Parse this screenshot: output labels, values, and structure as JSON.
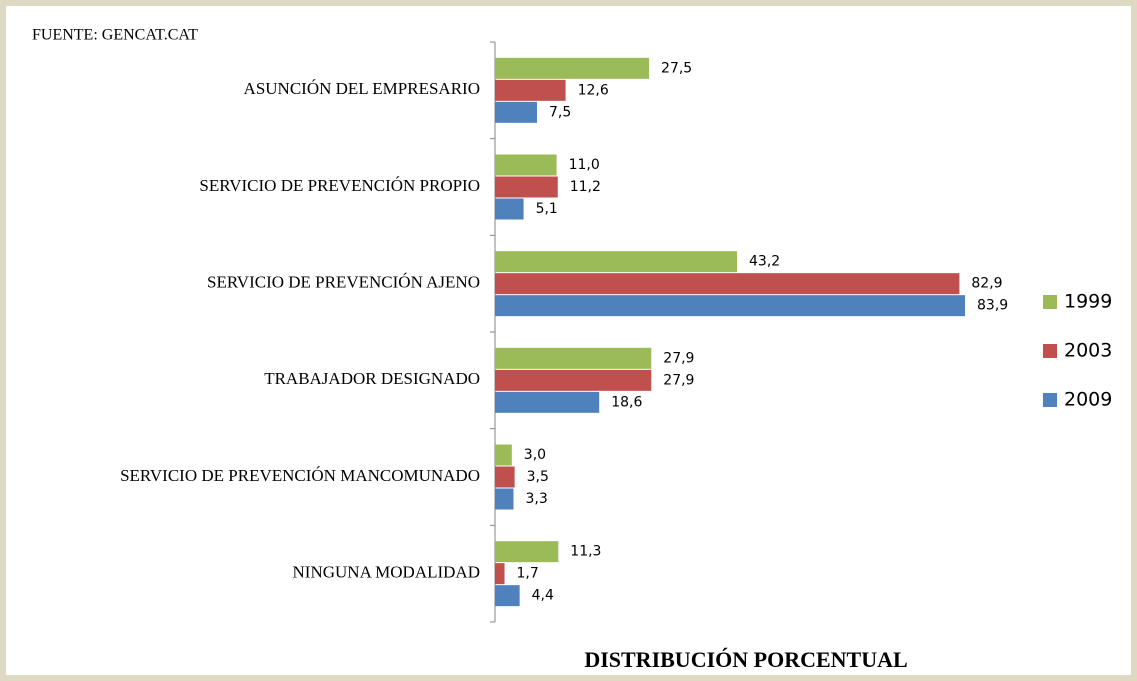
{
  "chart_data": {
    "type": "bar",
    "orientation": "horizontal",
    "source": "FUENTE: GENCAT.CAT",
    "x_label": "DISTRIBUCIÓN PORCENTUAL",
    "categories": [
      "ASUNCIÓN DEL EMPRESARIO",
      "SERVICIO DE PREVENCIÓN PROPIO",
      "SERVICIO DE PREVENCIÓN AJENO",
      "TRABAJADOR DESIGNADO",
      "SERVICIO DE PREVENCIÓN MANCOMUNADO",
      "NINGUNA MODALIDAD"
    ],
    "series": [
      {
        "name": "1999",
        "color": "#9bbb59",
        "values": [
          27.5,
          11.0,
          43.2,
          27.9,
          3.0,
          11.3
        ],
        "value_labels": [
          "27,5",
          "11,0",
          "43,2",
          "27,9",
          "3,0",
          "11,3"
        ]
      },
      {
        "name": "2003",
        "color": "#c0504d",
        "values": [
          12.6,
          11.2,
          82.9,
          27.9,
          3.5,
          1.7
        ],
        "value_labels": [
          "12,6",
          "11,2",
          "82,9",
          "27,9",
          "3,5",
          "1,7"
        ]
      },
      {
        "name": "2009",
        "color": "#4f81bd",
        "values": [
          7.5,
          5.1,
          83.9,
          18.6,
          3.3,
          4.4
        ],
        "value_labels": [
          "7,5",
          "5,1",
          "83,9",
          "18,6",
          "3,3",
          "4,4"
        ]
      }
    ],
    "legend": "right"
  }
}
